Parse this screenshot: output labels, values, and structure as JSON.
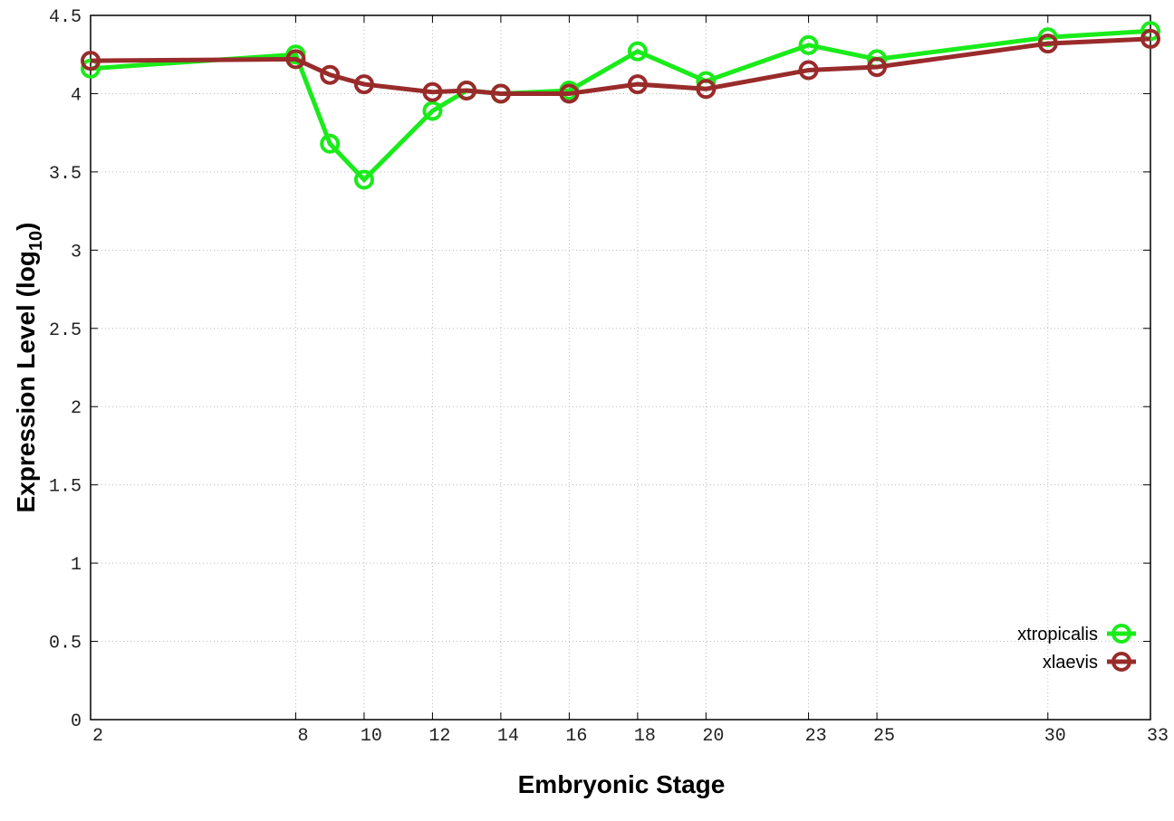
{
  "chart_data": {
    "type": "line",
    "x_label": "Embryonic Stage",
    "y_label": {
      "main": "Expression Level (log",
      "sub": "10",
      "end": ")"
    },
    "x": [
      2,
      8,
      9,
      10,
      12,
      13,
      14,
      16,
      18,
      20,
      23,
      25,
      30,
      33
    ],
    "series": [
      {
        "name": "xtropicalis",
        "color": "#1aeb1a",
        "values": [
          4.16,
          4.25,
          3.68,
          3.45,
          3.89,
          4.02,
          4.0,
          4.02,
          4.27,
          4.08,
          4.31,
          4.22,
          4.36,
          4.4
        ]
      },
      {
        "name": "xlaevis",
        "color": "#992b2b",
        "values": [
          4.21,
          4.22,
          4.12,
          4.06,
          4.01,
          4.02,
          4.0,
          4.0,
          4.06,
          4.03,
          4.15,
          4.17,
          4.32,
          4.35
        ]
      }
    ],
    "xlim": [
      2,
      33
    ],
    "xticks": [
      2,
      8,
      10,
      12,
      14,
      16,
      18,
      20,
      23,
      25,
      30,
      33
    ],
    "ylim": [
      0,
      4.5
    ],
    "yticks": [
      0,
      0.5,
      1,
      1.5,
      2,
      2.5,
      3,
      3.5,
      4,
      4.5
    ],
    "grid": true,
    "legend": "lower-right"
  }
}
